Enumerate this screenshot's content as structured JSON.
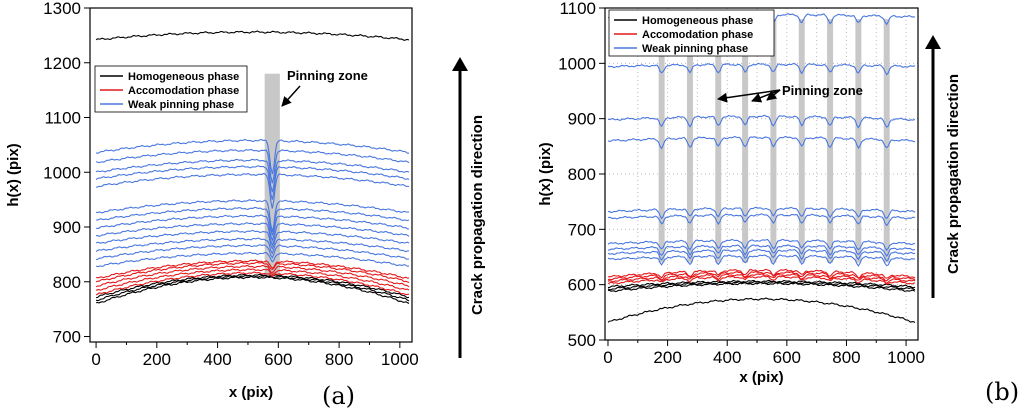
{
  "figure_labels": [
    "(a)",
    "(b)"
  ],
  "chart_data": [
    {
      "type": "line",
      "panel": "(a)",
      "xlabel": "x (pix)",
      "ylabel": "h(x) (pix)",
      "xlim": [
        -20,
        1040
      ],
      "ylim": [
        690,
        1300
      ],
      "xticks": [
        0,
        200,
        400,
        600,
        800,
        1000
      ],
      "yticks": [
        700,
        800,
        900,
        1000,
        1100,
        1200,
        1300
      ],
      "grid": false,
      "legend": [
        "Homogeneous phase",
        "Accomodation phase",
        "Weak pinning phase"
      ],
      "legend_position": "upper-left",
      "colors": {
        "Homogeneous phase": "#000000",
        "Accomodation phase": "#e41a1c",
        "Weak pinning phase": "#4a78e0"
      },
      "annotation": "Pinning zone",
      "side_label": "Crack propagation direction",
      "pinning_zones": [
        [
          555,
          605
        ]
      ],
      "pinning_zone_ylim": [
        810,
        1180
      ],
      "series": [
        {
          "phase": "Homogeneous phase",
          "baseline": 1242,
          "amplitude": 14,
          "dip": 0
        },
        {
          "phase": "Homogeneous phase",
          "baseline": 760,
          "amplitude": 48,
          "dip": 0
        },
        {
          "phase": "Homogeneous phase",
          "baseline": 766,
          "amplitude": 44,
          "dip": 0
        },
        {
          "phase": "Homogeneous phase",
          "baseline": 772,
          "amplitude": 40,
          "dip": 0
        },
        {
          "phase": "Accomodation phase",
          "baseline": 776,
          "amplitude": 40,
          "dip": 6
        },
        {
          "phase": "Accomodation phase",
          "baseline": 784,
          "amplitude": 38,
          "dip": 8
        },
        {
          "phase": "Accomodation phase",
          "baseline": 792,
          "amplitude": 36,
          "dip": 10
        },
        {
          "phase": "Accomodation phase",
          "baseline": 800,
          "amplitude": 34,
          "dip": 12
        },
        {
          "phase": "Accomodation phase",
          "baseline": 806,
          "amplitude": 32,
          "dip": 14
        },
        {
          "phase": "Weak pinning phase",
          "baseline": 828,
          "amplitude": 24,
          "dip": 14
        },
        {
          "phase": "Weak pinning phase",
          "baseline": 842,
          "amplitude": 24,
          "dip": 20
        },
        {
          "phase": "Weak pinning phase",
          "baseline": 856,
          "amplitude": 22,
          "dip": 26
        },
        {
          "phase": "Weak pinning phase",
          "baseline": 870,
          "amplitude": 22,
          "dip": 32
        },
        {
          "phase": "Weak pinning phase",
          "baseline": 884,
          "amplitude": 22,
          "dip": 38
        },
        {
          "phase": "Weak pinning phase",
          "baseline": 898,
          "amplitude": 22,
          "dip": 44
        },
        {
          "phase": "Weak pinning phase",
          "baseline": 912,
          "amplitude": 22,
          "dip": 50
        },
        {
          "phase": "Weak pinning phase",
          "baseline": 926,
          "amplitude": 22,
          "dip": 56
        },
        {
          "phase": "Weak pinning phase",
          "baseline": 974,
          "amplitude": 22,
          "dip": 60
        },
        {
          "phase": "Weak pinning phase",
          "baseline": 988,
          "amplitude": 22,
          "dip": 60
        },
        {
          "phase": "Weak pinning phase",
          "baseline": 1000,
          "amplitude": 22,
          "dip": 60
        },
        {
          "phase": "Weak pinning phase",
          "baseline": 1018,
          "amplitude": 22,
          "dip": 60
        },
        {
          "phase": "Weak pinning phase",
          "baseline": 1036,
          "amplitude": 22,
          "dip": 60
        }
      ]
    },
    {
      "type": "line",
      "panel": "(b)",
      "xlabel": "x (pix)",
      "ylabel": "h(x) (pix)",
      "xlim": [
        -10,
        1040
      ],
      "ylim": [
        500,
        1100
      ],
      "xticks": [
        0,
        200,
        400,
        600,
        800,
        1000
      ],
      "yticks": [
        500,
        600,
        700,
        800,
        900,
        1000,
        1100
      ],
      "grid": true,
      "legend": [
        "Homogeneous phase",
        "Accomodation phase",
        "Weak pinning phase"
      ],
      "legend_position": "upper-left",
      "colors": {
        "Homogeneous phase": "#000000",
        "Accomodation phase": "#e41a1c",
        "Weak pinning phase": "#4a78e0"
      },
      "annotation": "Pinning zone",
      "side_label": "Crack propagation direction",
      "pinning_zones": [
        [
          170,
          190
        ],
        [
          265,
          285
        ],
        [
          360,
          380
        ],
        [
          450,
          470
        ],
        [
          545,
          565
        ],
        [
          640,
          660
        ],
        [
          735,
          755
        ],
        [
          830,
          850
        ],
        [
          925,
          945
        ]
      ],
      "pinning_zone_ylim": [
        640,
        1080
      ],
      "series": [
        {
          "phase": "Homogeneous phase",
          "baseline": 532,
          "amplitude": 42,
          "dip": 0
        },
        {
          "phase": "Homogeneous phase",
          "baseline": 588,
          "amplitude": 14,
          "dip": 0
        },
        {
          "phase": "Homogeneous phase",
          "baseline": 592,
          "amplitude": 12,
          "dip": 0
        },
        {
          "phase": "Homogeneous phase",
          "baseline": 596,
          "amplitude": 10,
          "dip": 0
        },
        {
          "phase": "Accomodation phase",
          "baseline": 602,
          "amplitude": 12,
          "dip": 5
        },
        {
          "phase": "Accomodation phase",
          "baseline": 606,
          "amplitude": 12,
          "dip": 6
        },
        {
          "phase": "Accomodation phase",
          "baseline": 610,
          "amplitude": 12,
          "dip": 7
        },
        {
          "phase": "Accomodation phase",
          "baseline": 614,
          "amplitude": 12,
          "dip": 8
        },
        {
          "phase": "Weak pinning phase",
          "baseline": 646,
          "amplitude": 6,
          "dip": 14
        },
        {
          "phase": "Weak pinning phase",
          "baseline": 656,
          "amplitude": 6,
          "dip": 14
        },
        {
          "phase": "Weak pinning phase",
          "baseline": 664,
          "amplitude": 6,
          "dip": 14
        },
        {
          "phase": "Weak pinning phase",
          "baseline": 674,
          "amplitude": 6,
          "dip": 14
        },
        {
          "phase": "Weak pinning phase",
          "baseline": 720,
          "amplitude": 6,
          "dip": 14
        },
        {
          "phase": "Weak pinning phase",
          "baseline": 732,
          "amplitude": 6,
          "dip": 14
        },
        {
          "phase": "Weak pinning phase",
          "baseline": 860,
          "amplitude": 6,
          "dip": 16
        },
        {
          "phase": "Weak pinning phase",
          "baseline": 898,
          "amplitude": 6,
          "dip": 16
        },
        {
          "phase": "Weak pinning phase",
          "baseline": 994,
          "amplitude": 4,
          "dip": 14
        },
        {
          "phase": "Weak pinning phase",
          "baseline": 1084,
          "amplitude": 4,
          "dip": 14
        }
      ]
    }
  ]
}
